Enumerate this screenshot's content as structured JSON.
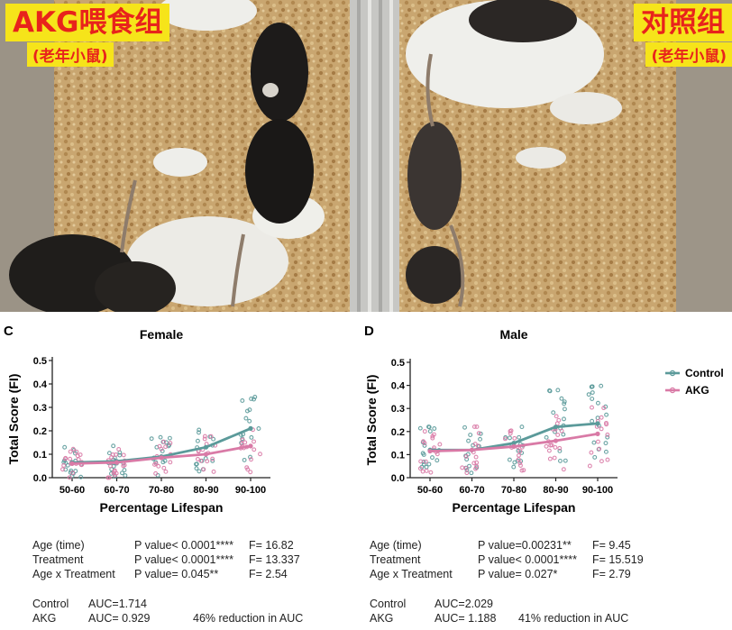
{
  "photo": {
    "left_label_title": "AKG喂食组",
    "left_label_sub": "(老年小鼠)",
    "right_label_title": "对照组",
    "right_label_sub": "(老年小鼠)"
  },
  "colors": {
    "control": "#5b9a9a",
    "akg": "#d97aa6",
    "label_bg": "#f6e41a",
    "label_text": "#e8231c"
  },
  "chart_data": [
    {
      "panel": "C",
      "type": "line",
      "title": "Female",
      "xlabel": "Percentage Lifespan",
      "ylabel": "Total Score (FI)",
      "categories": [
        "50-60",
        "60-70",
        "70-80",
        "80-90",
        "90-100"
      ],
      "ylim": [
        0,
        0.5
      ],
      "yticks": [
        "0.0",
        "0.1",
        "0.2",
        "0.3",
        "0.4",
        "0.5"
      ],
      "series": [
        {
          "name": "Control",
          "values": [
            0.065,
            0.07,
            0.09,
            0.13,
            0.21
          ]
        },
        {
          "name": "AKG",
          "values": [
            0.06,
            0.065,
            0.085,
            0.1,
            0.135
          ]
        }
      ],
      "stats": {
        "rows": [
          {
            "label": "Age (time)",
            "p": "P value< 0.0001****",
            "f": "F= 16.82"
          },
          {
            "label": "Treatment",
            "p": "P value< 0.0001****",
            "f": "F= 13.337"
          },
          {
            "label": "Age x Treatment",
            "p": "P value= 0.045**",
            "f": "F= 2.54"
          }
        ],
        "auc": [
          {
            "label": "Control",
            "value": "AUC=1.714",
            "note": ""
          },
          {
            "label": "AKG",
            "value": "AUC= 0.929",
            "note": "46%  reduction in AUC"
          }
        ]
      }
    },
    {
      "panel": "D",
      "type": "line",
      "title": "Male",
      "xlabel": "Percentage Lifespan",
      "ylabel": "Total Score (FI)",
      "categories": [
        "50-60",
        "60-70",
        "70-80",
        "80-90",
        "90-100"
      ],
      "ylim": [
        0,
        0.5
      ],
      "yticks": [
        "0.0",
        "0.1",
        "0.2",
        "0.3",
        "0.4",
        "0.5"
      ],
      "legend": "top-right",
      "series": [
        {
          "name": "Control",
          "values": [
            0.12,
            0.12,
            0.15,
            0.22,
            0.235
          ]
        },
        {
          "name": "AKG",
          "values": [
            0.115,
            0.12,
            0.135,
            0.16,
            0.19
          ]
        }
      ],
      "stats": {
        "rows": [
          {
            "label": "Age (time)",
            "p": "P value=0.00231**",
            "f": "F= 9.45"
          },
          {
            "label": "Treatment",
            "p": "P value< 0.0001****",
            "f": "F= 15.519"
          },
          {
            "label": "Age x Treatment",
            "p": "P value= 0.027*",
            "f": "F= 2.79"
          }
        ],
        "auc": [
          {
            "label": "Control",
            "value": "AUC=2.029",
            "note": ""
          },
          {
            "label": "AKG",
            "value": "AUC= 1.188",
            "note": "41%  reduction in AUC"
          }
        ]
      }
    }
  ]
}
